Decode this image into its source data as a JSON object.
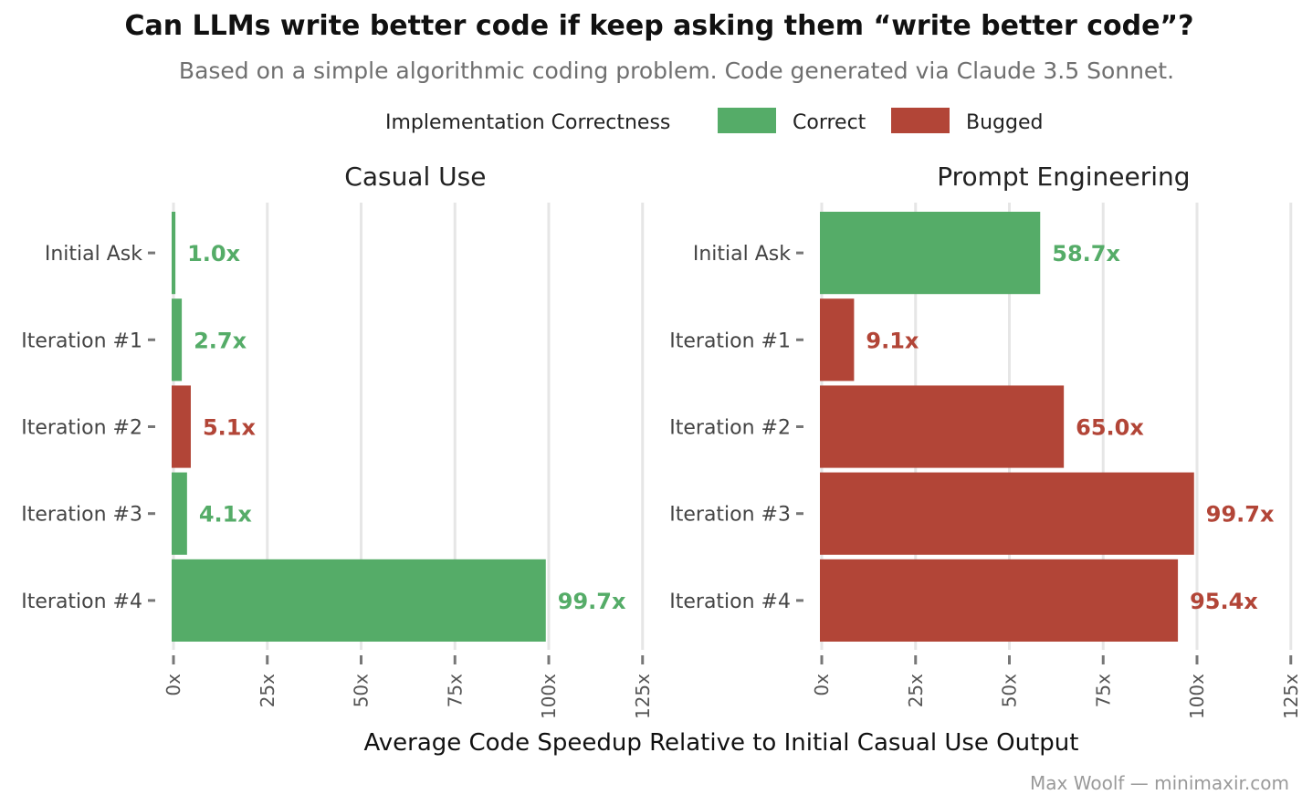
{
  "chart_data": {
    "type": "bar",
    "orientation": "horizontal",
    "title": "Can LLMs write better code if keep asking them “write better code”?",
    "subtitle": "Based on a simple algorithmic coding problem. Code generated via Claude 3.5 Sonnet.",
    "caption": "Max Woolf — minimaxir.com",
    "xlabel": "Average Code Speedup Relative to Initial Casual Use Output",
    "legend": {
      "title": "Implementation Correctness",
      "position": "top",
      "entries": [
        {
          "key": "correct",
          "label": "Correct",
          "color": "#55ac68"
        },
        {
          "key": "bugged",
          "label": "Bugged",
          "color": "#b24537"
        }
      ]
    },
    "categories": [
      "Initial Ask",
      "Iteration #1",
      "Iteration #2",
      "Iteration #3",
      "Iteration #4"
    ],
    "xlim": [
      0,
      125
    ],
    "x_ticks": [
      0,
      25,
      50,
      75,
      100,
      125
    ],
    "x_tick_labels": [
      "0x",
      "25x",
      "50x",
      "75x",
      "100x",
      "125x"
    ],
    "grid": true,
    "facets": [
      {
        "name": "Casual Use",
        "values": [
          1.0,
          2.7,
          5.1,
          4.1,
          99.7
        ],
        "labels": [
          "1.0x",
          "2.7x",
          "5.1x",
          "4.1x",
          "99.7x"
        ],
        "status": [
          "correct",
          "correct",
          "bugged",
          "correct",
          "correct"
        ]
      },
      {
        "name": "Prompt Engineering",
        "values": [
          58.7,
          9.1,
          65.0,
          99.7,
          95.4
        ],
        "labels": [
          "58.7x",
          "9.1x",
          "65.0x",
          "99.7x",
          "95.4x"
        ],
        "status": [
          "correct",
          "bugged",
          "bugged",
          "bugged",
          "bugged"
        ]
      }
    ]
  }
}
